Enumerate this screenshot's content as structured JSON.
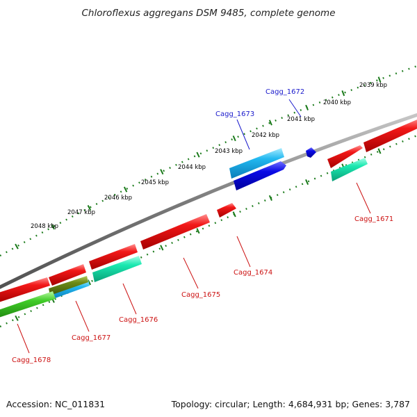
{
  "title": "Chloroflexus aggregans DSM 9485, complete genome",
  "footer": {
    "accession": "Accession: NC_011831",
    "topology": "Topology: circular; Length: 4,684,931 bp; Genes: 3,787"
  },
  "colors": {
    "backbone": "#7a7a7a",
    "tick": "#1a7a1a",
    "forward_label": "#1a1acc",
    "reverse_label": "#cc1111",
    "red_gene": "#e81010",
    "blue_gene": "#0a0ae0",
    "cyan_gene": "#1ab8f0",
    "aqua_gene": "#18e0a8",
    "olive_gene": "#6b8a18",
    "green_gene": "#3cc828"
  },
  "tick_labels": [
    "2039 kbp",
    "2040 kbp",
    "2041 kbp",
    "2042 kbp",
    "2043 kbp",
    "2044 kbp",
    "2045 kbp",
    "2046 kbp",
    "2047 kbp",
    "2048 kbp"
  ],
  "gene_labels": [
    {
      "name": "Cagg_1672",
      "strand": "forward"
    },
    {
      "name": "Cagg_1673",
      "strand": "forward"
    },
    {
      "name": "Cagg_1671",
      "strand": "reverse"
    },
    {
      "name": "Cagg_1674",
      "strand": "reverse"
    },
    {
      "name": "Cagg_1675",
      "strand": "reverse"
    },
    {
      "name": "Cagg_1676",
      "strand": "reverse"
    },
    {
      "name": "Cagg_1677",
      "strand": "reverse"
    },
    {
      "name": "Cagg_1678",
      "strand": "reverse"
    }
  ]
}
